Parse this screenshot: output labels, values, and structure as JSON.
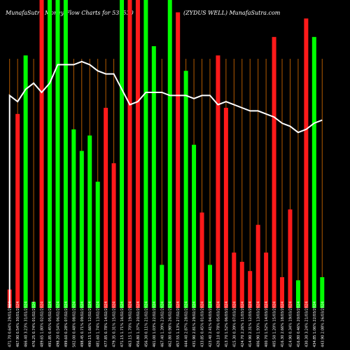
{
  "header": {
    "left_title": "MunafaSutra Money Flow  Charts for 531530",
    "center_title": "(ZYDUS WELL) MunafaSutra.com"
  },
  "colors": {
    "background": "#000000",
    "up": "#00ff00",
    "down": "#ff1a1a",
    "guide": "#b35a00",
    "line": "#ffffff",
    "text": "#ffffff"
  },
  "chart_data": {
    "type": "bar",
    "description_line": "white moving line overlay",
    "categories": [
      "471.70  0.64% 29/01/2024",
      "467.90  0.54% 30/01/2024",
      "466.40  3.23% 31/01/2024",
      "476.25  0.74% 01/02/2024",
      "489.65  1.80% 02/02/2024",
      "491.85  0.45% 05/02/2024",
      "498.20  0.54% 06/02/2024",
      "499.60  0.28% 07/02/2024",
      "502.00  0.48% 08/02/2024",
      "498.45  0.71% 09/02/2024",
      "490.15  1.66% 12/02/2024",
      "481.60  1.74% 13/02/2024",
      "477.85  0.78% 14/02/2024",
      "479.35  0.31% 15/02/2024",
      "471.15  1.71% 16/02/2024",
      "463.15  1.70% 19/02/2024",
      "456.80  1.37% 20/02/2024",
      "456.30  0.11% 21/02/2024",
      "461.00  1.03% 22/02/2024",
      "467.40  1.39% 23/02/2024",
      "462.80  0.98% 26/02/2024",
      "457.55  1.13% 27/02/2024",
      "444.40  2.87% 28/02/2024",
      "431.90  2.81% 29/02/2024",
      "433.85  0.45% 01/03/2024",
      "423.40  2.41% 04/03/2024",
      "420.10  0.78% 05/03/2024",
      "413.70  1.52% 06/03/2024",
      "415.30  0.39% 07/03/2024",
      "424.70  2.26% 11/03/2024",
      "414.90  2.31% 12/03/2024",
      "406.90  1.93% 13/03/2024",
      "400.70  1.52% 14/03/2024",
      "405.50  1.20% 15/03/2024",
      "416.30  2.66% 18/03/2024",
      "414.90  0.34% 19/03/2024",
      "416.80  0.46% 20/03/2024",
      "430.30  3.24% 21/03/2024",
      "434.85  1.06% 22/03/2024",
      "443.90  2.08% 26/03/2024"
    ],
    "bar_colors": [
      "red",
      "red",
      "green",
      "green",
      "red",
      "green",
      "green",
      "green",
      "green",
      "green",
      "green",
      "green",
      "red",
      "red",
      "green",
      "red",
      "red",
      "green",
      "green",
      "green",
      "green",
      "red",
      "green",
      "green",
      "red",
      "green",
      "red",
      "red",
      "red",
      "red",
      "red",
      "red",
      "red",
      "red",
      "red",
      "red",
      "green",
      "red",
      "green",
      "green"
    ],
    "values": [
      6,
      63,
      82,
      2,
      100,
      100,
      100,
      100,
      58,
      51,
      56,
      41,
      65,
      47,
      100,
      100,
      100,
      100,
      85,
      14,
      100,
      96,
      77,
      53,
      31,
      14,
      82,
      65,
      18,
      15,
      12,
      27,
      18,
      88,
      10,
      32,
      9,
      94,
      88,
      10
    ],
    "line": [
      69,
      67,
      71,
      73,
      70,
      73,
      79,
      79,
      79,
      80,
      79,
      77,
      76,
      76,
      71,
      66,
      67,
      70,
      70,
      70,
      69,
      69,
      69,
      68,
      69,
      69,
      66,
      67,
      66,
      65,
      64,
      64,
      63,
      62,
      60,
      59,
      57,
      58,
      60,
      61
    ],
    "ylim": [
      0,
      100
    ],
    "grid": false
  }
}
